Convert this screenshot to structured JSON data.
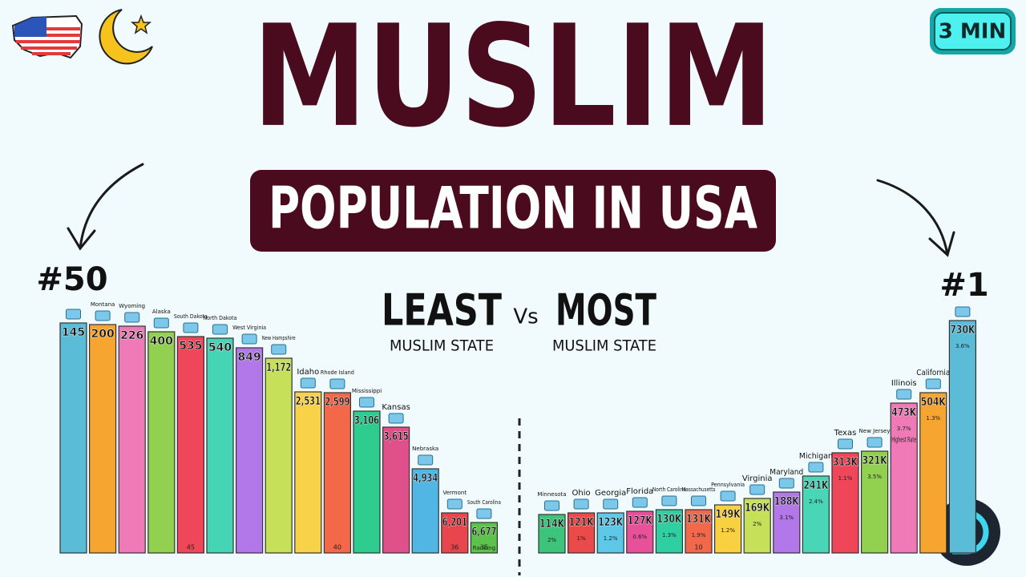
{
  "header": {
    "badge": "3 MIN",
    "title": "MUSLIM",
    "subtitle": "POPULATION IN USA",
    "left_rank": "#50",
    "right_rank": "#1",
    "least": "LEAST",
    "vs": "Vs",
    "most": "MOST",
    "least_caption": "MUSLIM STATE",
    "most_caption": "MUSLIM STATE"
  },
  "least_states": [
    {
      "value": "145"
    },
    {
      "name": "Montana",
      "value": "200"
    },
    {
      "name": "Wyoming",
      "value": "226"
    },
    {
      "name": "Alaska",
      "value": "400"
    },
    {
      "name": "South Dakota",
      "value": "535",
      "rank": "45"
    },
    {
      "name": "North Dakota",
      "value": "540"
    },
    {
      "name": "West Virginia",
      "value": "849"
    },
    {
      "name": "New Hampshire",
      "value": "1,172"
    },
    {
      "name": "Idaho",
      "value": "2,531"
    },
    {
      "name": "Rhode Island",
      "value": "2,599",
      "rank": "40"
    },
    {
      "name": "Mississippi",
      "value": "3,106"
    },
    {
      "name": "Kansas",
      "value": "3,615"
    },
    {
      "name": "Nebraska",
      "value": "4,934"
    },
    {
      "name": "Vermont",
      "value": "6,201",
      "rank": "36"
    },
    {
      "name": "South Carolina",
      "value": "6,677",
      "note": "Ranking",
      "rank": "35"
    }
  ],
  "most_states": [
    {
      "name": "Minnesota",
      "value": "114K",
      "note": "2%"
    },
    {
      "name": "Ohio",
      "value": "121K",
      "note": "1%"
    },
    {
      "name": "Georgia",
      "value": "123K",
      "note": "1.2%"
    },
    {
      "name": "Florida",
      "value": "127K",
      "note": "0.6%"
    },
    {
      "name": "North Carolina",
      "value": "130K",
      "note": "1.3%"
    },
    {
      "name": "Massachusetts",
      "value": "131K",
      "note": "1.9%",
      "rank": "10"
    },
    {
      "name": "Pennsylvania",
      "value": "149K",
      "note": "1.2%"
    },
    {
      "name": "Virginia",
      "value": "169K",
      "note": "2%"
    },
    {
      "name": "Maryland",
      "value": "188K",
      "note": "3.1%"
    },
    {
      "name": "Michigan",
      "value": "241K",
      "note": "2.4%"
    },
    {
      "name": "Texas",
      "value": "313K",
      "note": "1.1%"
    },
    {
      "name": "New Jersey",
      "value": "321K",
      "note": "3.5%"
    },
    {
      "name": "Illinois",
      "value": "473K",
      "note": "3.7%",
      "extra": "Highest Rate"
    },
    {
      "name": "California",
      "value": "504K",
      "note": "1.3%"
    },
    {
      "value": "730K",
      "note": "3.6%"
    }
  ]
}
